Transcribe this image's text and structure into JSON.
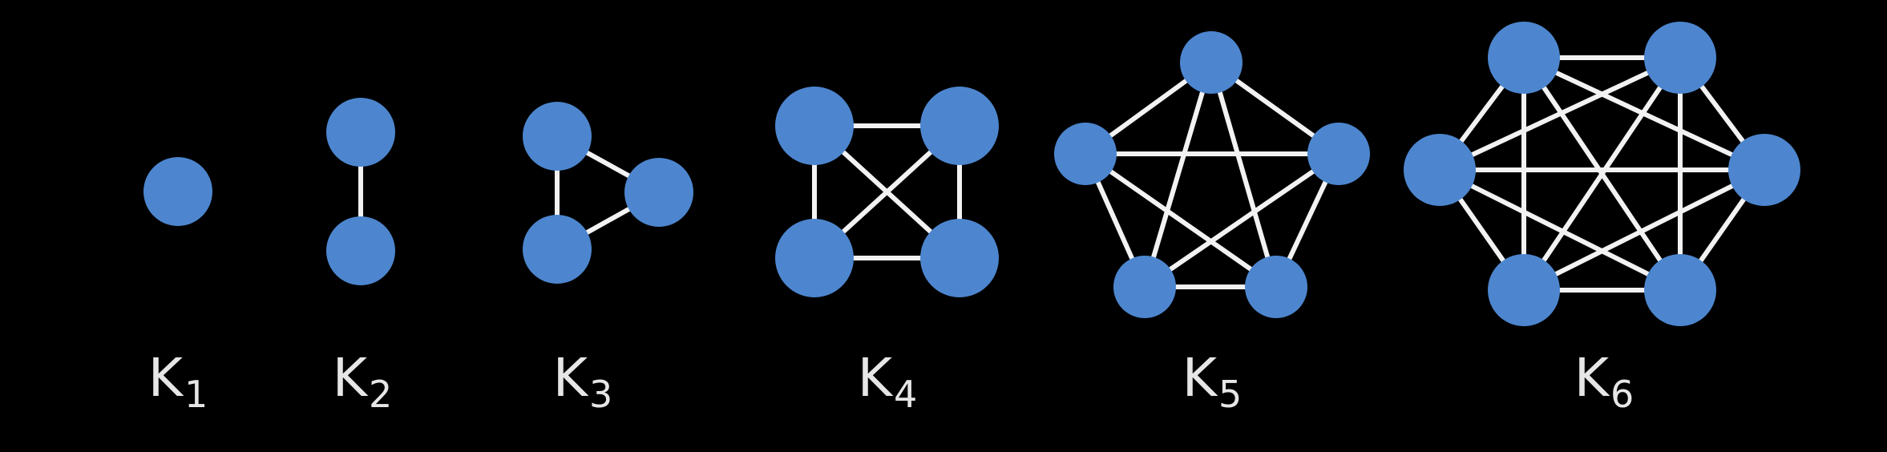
{
  "colors": {
    "background": "#000000",
    "node": "#4d86cf",
    "edge": "#f2f2f2",
    "label": "#e6e6e6"
  },
  "graphs": [
    {
      "label_letter": "K",
      "label_sub": "1",
      "vertices": 1
    },
    {
      "label_letter": "K",
      "label_sub": "2",
      "vertices": 2
    },
    {
      "label_letter": "K",
      "label_sub": "3",
      "vertices": 3
    },
    {
      "label_letter": "K",
      "label_sub": "4",
      "vertices": 4
    },
    {
      "label_letter": "K",
      "label_sub": "5",
      "vertices": 5
    },
    {
      "label_letter": "K",
      "label_sub": "6",
      "vertices": 6
    }
  ]
}
